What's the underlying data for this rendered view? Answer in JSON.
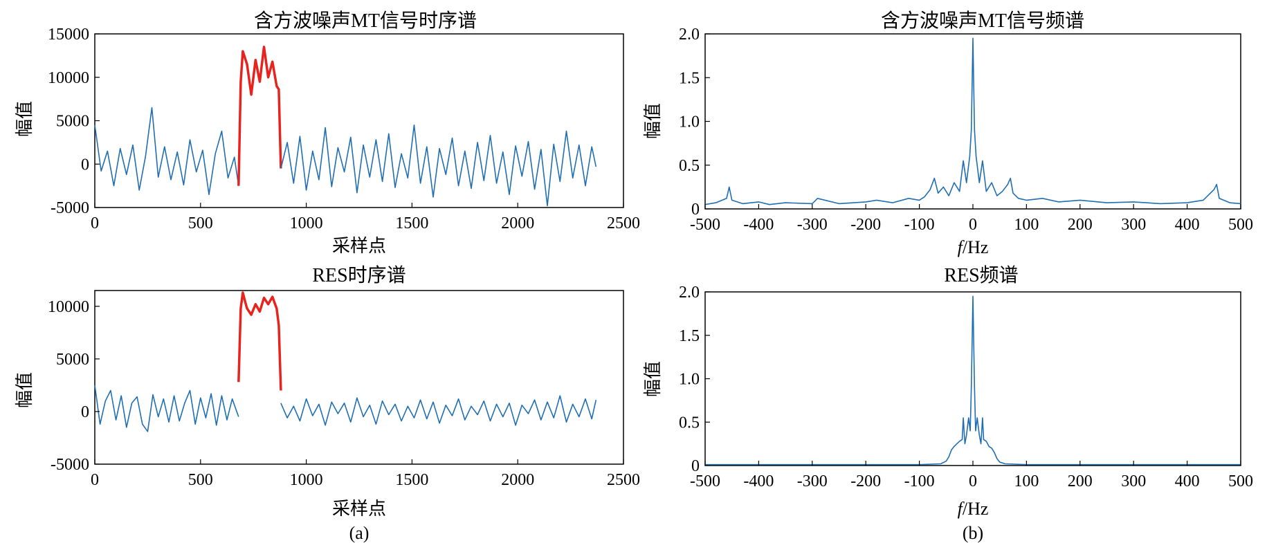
{
  "panel_labels": [
    "(a)",
    "(b)"
  ],
  "colors": {
    "series": "#1f6eb4",
    "highlight": "#e8231e",
    "axes": "#000000"
  },
  "chart_data": [
    {
      "id": "tl",
      "type": "line",
      "title": "含方波噪声MT信号时序谱",
      "xlabel": "采样点",
      "ylabel": "幅值",
      "xlim": [
        0,
        2500
      ],
      "ylim": [
        -5000,
        15000
      ],
      "xticks": [
        0,
        500,
        1000,
        1500,
        2000,
        2500
      ],
      "yticks": [
        -5000,
        0,
        5000,
        10000,
        15000
      ],
      "grid": false,
      "series": [
        {
          "x": [
            0,
            30,
            60,
            90,
            120,
            150,
            180,
            210,
            240,
            270,
            300,
            330,
            360,
            390,
            420,
            450,
            480,
            510,
            540,
            570,
            600,
            630,
            660,
            680
          ],
          "y": [
            4500,
            -800,
            1500,
            -2500,
            1800,
            -1200,
            2200,
            -3000,
            900,
            6500,
            -1500,
            2000,
            -1800,
            1400,
            -2400,
            2800,
            -900,
            1600,
            -3500,
            1200,
            3800,
            -1600,
            800,
            -2500
          ]
        },
        {
          "x": [
            680,
            690,
            700,
            720,
            740,
            760,
            780,
            800,
            820,
            840,
            860,
            870,
            880
          ],
          "y": [
            -2500,
            9500,
            13000,
            11500,
            8000,
            12000,
            9500,
            13500,
            10000,
            11800,
            9000,
            8600,
            -500
          ]
        },
        {
          "x": [
            880,
            910,
            940,
            970,
            1000,
            1030,
            1060,
            1090,
            1120,
            1150,
            1180,
            1210,
            1240,
            1270,
            1300,
            1330,
            1360,
            1390,
            1420,
            1450,
            1480,
            1510,
            1540,
            1570,
            1600,
            1630,
            1660,
            1690,
            1720,
            1750,
            1780,
            1810,
            1840,
            1870,
            1900,
            1930,
            1960,
            1990,
            2020,
            2050,
            2080,
            2110,
            2140,
            2170,
            2200,
            2230,
            2260,
            2290,
            2320,
            2350,
            2370
          ],
          "y": [
            -500,
            2500,
            -2200,
            3200,
            -3000,
            1500,
            -1800,
            4200,
            -2600,
            1900,
            -900,
            3100,
            -3300,
            2200,
            -1500,
            2800,
            -2000,
            3500,
            -2700,
            1200,
            -1600,
            4500,
            -2200,
            2000,
            -3800,
            1800,
            -1200,
            3000,
            -2500,
            1500,
            -2800,
            2500,
            -1900,
            3300,
            -2200,
            1400,
            -3500,
            2100,
            -1400,
            2600,
            -2900,
            1700,
            -4800,
            2300,
            -2000,
            3800,
            -1600,
            2200,
            -2500,
            2000,
            -300
          ]
        }
      ]
    },
    {
      "id": "tr",
      "type": "line",
      "title": "含方波噪声MT信号频谱",
      "xlabel": "f/Hz",
      "ylabel": "幅值",
      "xlim": [
        -500,
        500
      ],
      "ylim": [
        0,
        2.0
      ],
      "xticks": [
        -500,
        -400,
        -300,
        -200,
        -100,
        0,
        100,
        200,
        300,
        400,
        500
      ],
      "yticks": [
        0,
        0.5,
        1.0,
        1.5,
        2.0
      ],
      "grid": false,
      "series": [
        {
          "x": [
            -500,
            -480,
            -460,
            -455,
            -450,
            -430,
            -400,
            -380,
            -350,
            -300,
            -290,
            -250,
            -200,
            -180,
            -150,
            -120,
            -100,
            -90,
            -80,
            -72,
            -65,
            -55,
            -45,
            -35,
            -25,
            -18,
            -12,
            -6,
            -3,
            0,
            3,
            6,
            12,
            18,
            25,
            35,
            45,
            55,
            65,
            70,
            75,
            85,
            100,
            130,
            160,
            200,
            250,
            300,
            350,
            400,
            430,
            450,
            455,
            460,
            480,
            500
          ],
          "y": [
            0.05,
            0.07,
            0.12,
            0.25,
            0.1,
            0.06,
            0.08,
            0.05,
            0.07,
            0.06,
            0.12,
            0.06,
            0.08,
            0.1,
            0.07,
            0.12,
            0.1,
            0.14,
            0.22,
            0.35,
            0.18,
            0.25,
            0.15,
            0.3,
            0.2,
            0.55,
            0.3,
            0.6,
            0.9,
            1.95,
            0.9,
            0.6,
            0.3,
            0.55,
            0.2,
            0.3,
            0.15,
            0.2,
            0.28,
            0.35,
            0.18,
            0.12,
            0.1,
            0.12,
            0.08,
            0.1,
            0.07,
            0.08,
            0.06,
            0.07,
            0.1,
            0.22,
            0.28,
            0.12,
            0.07,
            0.06
          ]
        }
      ]
    },
    {
      "id": "bl",
      "type": "line",
      "title": "RES时序谱",
      "xlabel": "采样点",
      "ylabel": "幅值",
      "xlim": [
        0,
        2500
      ],
      "ylim": [
        -5000,
        11500
      ],
      "xticks": [
        0,
        500,
        1000,
        1500,
        2000,
        2500
      ],
      "yticks": [
        -5000,
        0,
        5000,
        10000
      ],
      "grid": false,
      "series": [
        {
          "x": [
            0,
            25,
            50,
            75,
            100,
            125,
            150,
            175,
            200,
            225,
            250,
            275,
            300,
            325,
            350,
            375,
            400,
            425,
            450,
            475,
            500,
            525,
            550,
            575,
            600,
            625,
            650,
            680
          ],
          "y": [
            2500,
            -1200,
            1000,
            2000,
            -800,
            1500,
            -1500,
            800,
            1400,
            -1200,
            -1900,
            1600,
            -500,
            1200,
            -1000,
            1500,
            -900,
            800,
            2000,
            -1200,
            1300,
            -600,
            1700,
            -1300,
            1500,
            -800,
            1200,
            -500
          ]
        },
        {
          "x": [
            680,
            690,
            700,
            710,
            720,
            740,
            760,
            780,
            800,
            820,
            840,
            860,
            870,
            880
          ],
          "y": [
            2800,
            9800,
            11300,
            10500,
            9800,
            9200,
            10200,
            9500,
            10800,
            10200,
            10900,
            9800,
            8200,
            2000
          ]
        },
        {
          "x": [
            880,
            910,
            940,
            970,
            1000,
            1030,
            1060,
            1090,
            1120,
            1150,
            1180,
            1210,
            1240,
            1270,
            1300,
            1330,
            1360,
            1390,
            1420,
            1450,
            1480,
            1510,
            1540,
            1570,
            1600,
            1630,
            1660,
            1690,
            1720,
            1750,
            1780,
            1810,
            1840,
            1870,
            1900,
            1930,
            1960,
            1990,
            2020,
            2050,
            2080,
            2110,
            2140,
            2170,
            2200,
            2230,
            2260,
            2290,
            2320,
            2350,
            2370
          ],
          "y": [
            800,
            -600,
            500,
            -900,
            1200,
            -400,
            700,
            -1300,
            900,
            -200,
            800,
            -1000,
            1300,
            -500,
            600,
            -1200,
            1000,
            -300,
            700,
            -900,
            500,
            -600,
            1100,
            -700,
            900,
            -1100,
            600,
            -400,
            1200,
            -800,
            500,
            -300,
            1000,
            -900,
            700,
            -500,
            800,
            -1300,
            600,
            -200,
            1100,
            -800,
            900,
            -600,
            1500,
            -1000,
            700,
            -500,
            1200,
            -700,
            1100
          ]
        }
      ]
    },
    {
      "id": "br",
      "type": "line",
      "title": "RES频谱",
      "xlabel": "f/Hz",
      "ylabel": "幅值",
      "xlim": [
        -500,
        500
      ],
      "ylim": [
        0,
        2.0
      ],
      "xticks": [
        -500,
        -400,
        -300,
        -200,
        -100,
        0,
        100,
        200,
        300,
        400,
        500
      ],
      "yticks": [
        0,
        0.5,
        1.0,
        1.5,
        2.0
      ],
      "grid": false,
      "series": [
        {
          "x": [
            -500,
            -300,
            -200,
            -100,
            -60,
            -50,
            -45,
            -40,
            -35,
            -30,
            -25,
            -20,
            -18,
            -15,
            -12,
            -8,
            -5,
            -3,
            0,
            3,
            5,
            8,
            12,
            15,
            18,
            20,
            25,
            30,
            35,
            40,
            45,
            50,
            60,
            100,
            200,
            300,
            500
          ],
          "y": [
            0.01,
            0.01,
            0.01,
            0.01,
            0.02,
            0.05,
            0.1,
            0.18,
            0.22,
            0.25,
            0.28,
            0.3,
            0.55,
            0.25,
            0.35,
            0.55,
            0.4,
            0.9,
            1.95,
            0.9,
            0.4,
            0.55,
            0.35,
            0.25,
            0.55,
            0.3,
            0.28,
            0.22,
            0.2,
            0.15,
            0.08,
            0.04,
            0.02,
            0.01,
            0.01,
            0.01,
            0.01
          ]
        }
      ]
    }
  ]
}
